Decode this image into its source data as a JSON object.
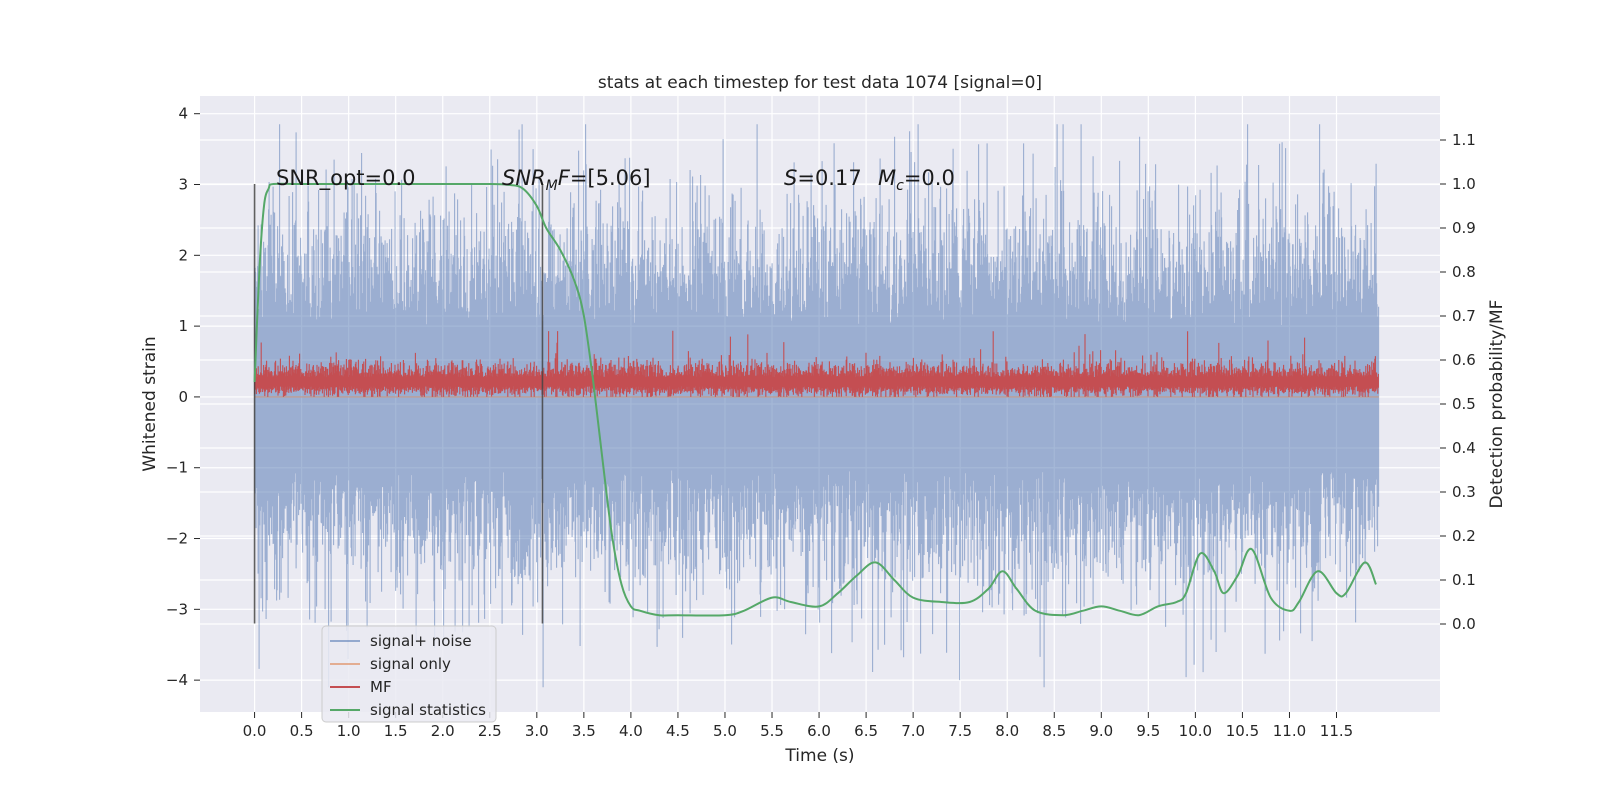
{
  "chart_data": {
    "type": "line",
    "title": "stats at each timestep for test data 1074 [signal=0]",
    "xlabel": "Time (s)",
    "ylabel": "Whitened strain",
    "ylabel_right": "Detection probability/MF",
    "xlim": [
      -0.58,
      12.6
    ],
    "ylim": [
      -4.45,
      4.25
    ],
    "ylim_right": [
      -0.2,
      1.2
    ],
    "x_ticks": [
      "0.0",
      "0.5",
      "1.0",
      "1.5",
      "2.0",
      "2.5",
      "3.0",
      "3.5",
      "4.0",
      "4.5",
      "5.0",
      "5.5",
      "6.0",
      "6.5",
      "7.0",
      "7.5",
      "8.0",
      "8.5",
      "9.0",
      "9.5",
      "10.0",
      "10.5",
      "11.0",
      "11.5"
    ],
    "y_ticks": [
      "−4",
      "−3",
      "−2",
      "−1",
      "0",
      "1",
      "2",
      "3",
      "4"
    ],
    "y_ticks_right": [
      "0.0",
      "0.1",
      "0.2",
      "0.3",
      "0.4",
      "0.5",
      "0.6",
      "0.7",
      "0.8",
      "0.9",
      "1.0",
      "1.1"
    ],
    "grid": true,
    "legend_position": "lower-left",
    "annotations": {
      "snr_opt": "SNR_opt=0.0",
      "snr_mf_main": "SNR",
      "snr_mf_sub": "M",
      "snr_mf_rest": "F=[5.06]",
      "s_italic": "S",
      "s_rest": "=0.17",
      "mc_main": "M",
      "mc_sub": "c",
      "mc_rest": "=0.0"
    },
    "vertical_markers_x": [
      0.0,
      3.06
    ],
    "colors": {
      "noise": "#4c72b0",
      "signal_only": "#dd8452",
      "mf": "#c44e52",
      "stats": "#55a868",
      "background": "#eaeaf2"
    },
    "series": [
      {
        "name": "signal+ noise",
        "axis": "left",
        "style": "dense noise",
        "x_range": [
          0.0,
          11.95
        ],
        "typical_band": [
          -1.5,
          1.5
        ],
        "extremes": [
          -4.1,
          3.85
        ]
      },
      {
        "name": "signal only",
        "axis": "left",
        "style": "line",
        "x": [
          0.0,
          11.95
        ],
        "y": [
          0.0,
          0.0
        ]
      },
      {
        "name": "MF",
        "axis": "left",
        "style": "dense noise",
        "x_range": [
          0.0,
          11.95
        ],
        "typical_band": [
          0.05,
          0.5
        ],
        "extremes": [
          0.0,
          1.0
        ]
      },
      {
        "name": "signal statistics",
        "axis": "right",
        "style": "line",
        "x": [
          0.0,
          0.05,
          0.1,
          0.15,
          0.2,
          0.5,
          1.0,
          2.0,
          2.5,
          2.7,
          2.85,
          3.0,
          3.1,
          3.25,
          3.4,
          3.5,
          3.6,
          3.7,
          3.8,
          3.9,
          4.0,
          4.1,
          4.3,
          4.5,
          5.0,
          5.2,
          5.5,
          5.7,
          6.0,
          6.2,
          6.4,
          6.6,
          6.8,
          7.0,
          7.3,
          7.6,
          7.8,
          7.95,
          8.1,
          8.3,
          8.6,
          8.8,
          9.0,
          9.2,
          9.4,
          9.6,
          9.8,
          9.9,
          10.05,
          10.2,
          10.3,
          10.45,
          10.6,
          10.8,
          11.0,
          11.1,
          11.3,
          11.5,
          11.6,
          11.8,
          11.92
        ],
        "y": [
          0.55,
          0.8,
          0.95,
          0.99,
          1.0,
          1.0,
          1.0,
          1.0,
          1.0,
          0.998,
          0.99,
          0.95,
          0.9,
          0.85,
          0.78,
          0.7,
          0.55,
          0.37,
          0.2,
          0.09,
          0.04,
          0.03,
          0.02,
          0.02,
          0.02,
          0.03,
          0.06,
          0.05,
          0.04,
          0.07,
          0.11,
          0.14,
          0.1,
          0.06,
          0.05,
          0.05,
          0.08,
          0.12,
          0.08,
          0.03,
          0.02,
          0.03,
          0.04,
          0.03,
          0.02,
          0.04,
          0.05,
          0.07,
          0.16,
          0.12,
          0.07,
          0.11,
          0.17,
          0.06,
          0.03,
          0.05,
          0.12,
          0.07,
          0.07,
          0.14,
          0.09
        ]
      }
    ]
  }
}
